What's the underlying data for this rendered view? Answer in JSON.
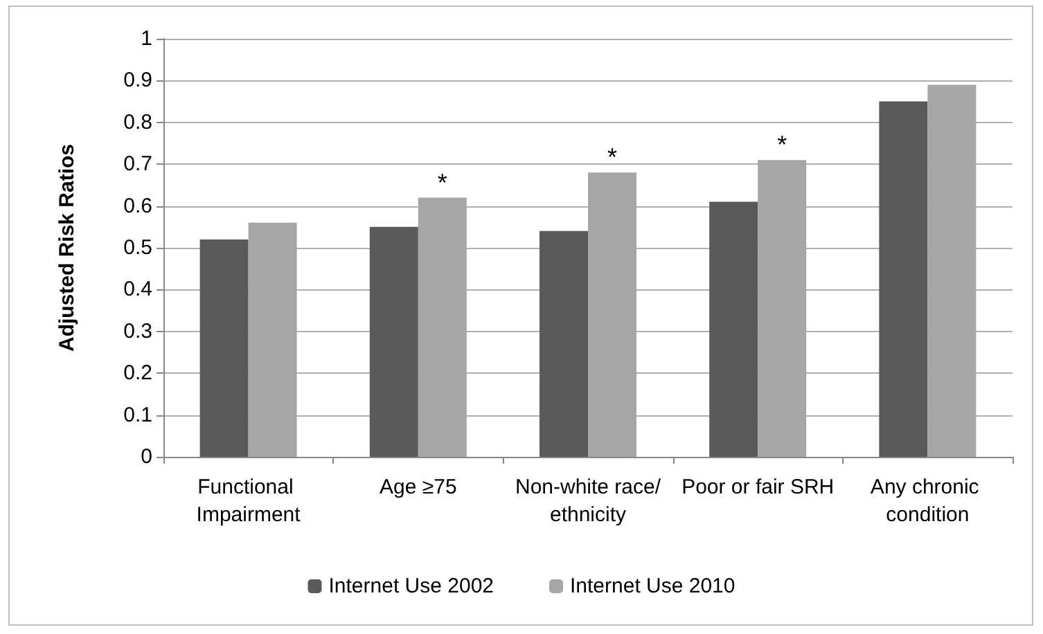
{
  "chart_data": {
    "type": "bar",
    "ylabel": "Adjusted Risk Ratios",
    "categories": [
      "Functional Impairment",
      "Age ≥75",
      "Non-white race/ethnicity",
      "Poor or fair SRH",
      "Any chronic condition"
    ],
    "series": [
      {
        "name": "Internet Use 2002",
        "color": "#595959",
        "values": [
          0.52,
          0.55,
          0.54,
          0.61,
          0.85
        ]
      },
      {
        "name": "Internet Use 2010",
        "color": "#a6a6a6",
        "values": [
          0.56,
          0.62,
          0.68,
          0.71,
          0.89
        ]
      }
    ],
    "ylim": [
      0,
      1
    ],
    "yticks": [
      0,
      0.1,
      0.2,
      0.3,
      0.4,
      0.5,
      0.6,
      0.7,
      0.8,
      0.9,
      1
    ],
    "grid": "y",
    "legend": "bottom",
    "annotations": [
      {
        "text": "*",
        "x": "Age ≥75",
        "y": 0.62
      },
      {
        "text": "*",
        "x": "Non-white race/ethnicity",
        "y": 0.68
      },
      {
        "text": "*",
        "x": "Poor or fair SRH",
        "y": 0.71
      }
    ]
  }
}
